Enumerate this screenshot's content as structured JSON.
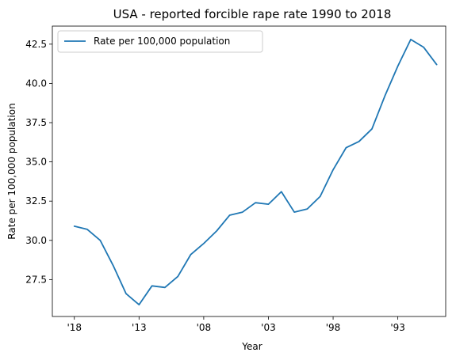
{
  "chart_data": {
    "type": "line",
    "title": "USA - reported forcible rape rate 1990 to 2018",
    "xlabel": "Year",
    "ylabel": "Rate per 100,000 population",
    "x_reversed": true,
    "x": [
      2018,
      2017,
      2016,
      2015,
      2014,
      2013,
      2012,
      2011,
      2010,
      2009,
      2008,
      2007,
      2006,
      2005,
      2004,
      2003,
      2002,
      2001,
      2000,
      1999,
      1998,
      1997,
      1996,
      1995,
      1994,
      1993,
      1992,
      1991,
      1990
    ],
    "xlim": [
      2019.7,
      1989.3
    ],
    "x_ticks": [
      2018,
      2013,
      2008,
      2003,
      1998,
      1993
    ],
    "x_tick_labels": [
      "'18",
      "'13",
      "'08",
      "'03",
      "'98",
      "'93"
    ],
    "ylim": [
      25.15,
      43.65
    ],
    "y_ticks": [
      27.5,
      30.0,
      32.5,
      35.0,
      37.5,
      40.0,
      42.5
    ],
    "y_tick_labels": [
      "27.5",
      "30.0",
      "32.5",
      "35.0",
      "37.5",
      "40.0",
      "42.5"
    ],
    "grid": false,
    "legend_position": "top-left",
    "series": [
      {
        "name": "Rate per 100,000 population",
        "color": "#1f77b4",
        "values": [
          30.9,
          30.7,
          30.0,
          28.4,
          26.6,
          25.9,
          27.1,
          27.0,
          27.7,
          29.1,
          29.8,
          30.6,
          31.6,
          31.8,
          32.4,
          32.3,
          33.1,
          31.8,
          32.0,
          32.8,
          34.5,
          35.9,
          36.3,
          37.1,
          39.2,
          41.1,
          42.8,
          42.3,
          41.2
        ]
      }
    ]
  }
}
